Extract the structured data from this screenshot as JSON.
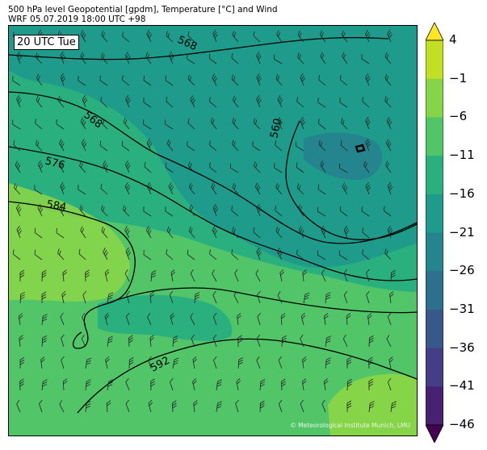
{
  "header": {
    "line1": "500 hPa level Geopotential [gpdm], Temperature [°C] and Wind",
    "line2": "WRF 05.07.2019 18:00 UTC +98"
  },
  "map": {
    "time_label": "20 UTC Tue",
    "credit": "© Meteorological Institute Munich, LMU",
    "contour_labels": [
      "568",
      "568",
      "560",
      "576",
      "584",
      "592"
    ]
  },
  "colorbar": {
    "labels": [
      "4",
      "−1",
      "−6",
      "−11",
      "−16",
      "−21",
      "−26",
      "−31",
      "−36",
      "−41",
      "−46"
    ],
    "colors": [
      "#fde725",
      "#c2df23",
      "#86d549",
      "#52c569",
      "#2ab07f",
      "#1e9b8a",
      "#25858e",
      "#2d708e",
      "#38588c",
      "#433e85",
      "#482173",
      "#440154"
    ]
  }
}
